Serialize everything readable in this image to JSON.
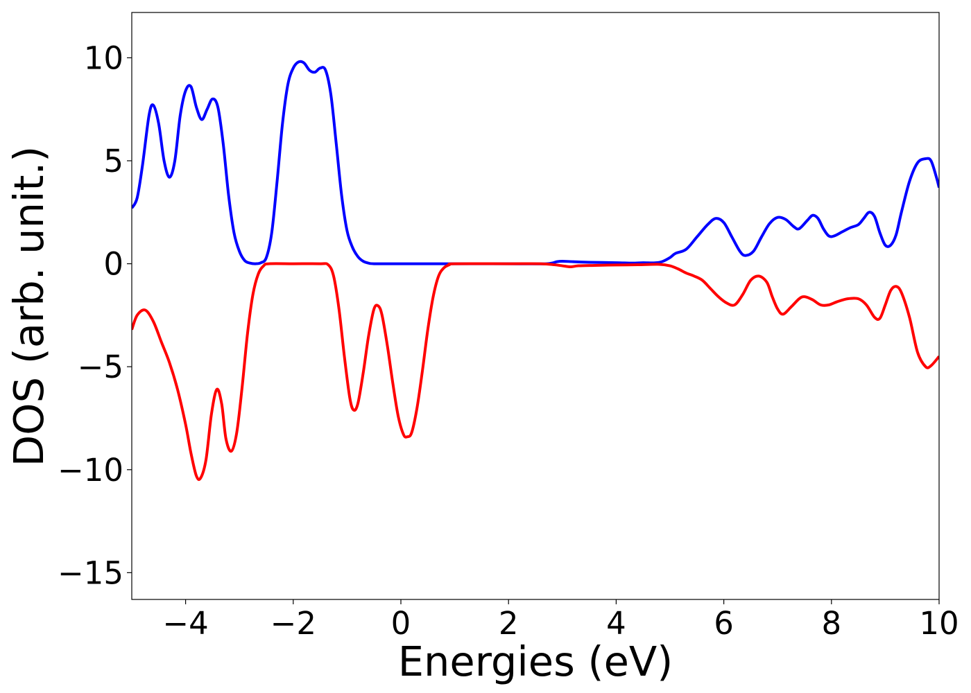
{
  "chart_data": {
    "type": "line",
    "title": "",
    "xlabel": "Energies (eV)",
    "ylabel": "DOS (arb. unit.)",
    "xlim": [
      -5,
      10
    ],
    "ylim": [
      -16.3,
      12.2
    ],
    "grid": false,
    "legend": "none",
    "x_ticks": [
      {
        "value": -4,
        "label": "−4"
      },
      {
        "value": -2,
        "label": "−2"
      },
      {
        "value": 0,
        "label": "0"
      },
      {
        "value": 2,
        "label": "2"
      },
      {
        "value": 4,
        "label": "4"
      },
      {
        "value": 6,
        "label": "6"
      },
      {
        "value": 8,
        "label": "8"
      },
      {
        "value": 10,
        "label": "10"
      }
    ],
    "y_ticks": [
      {
        "value": 10,
        "label": "10"
      },
      {
        "value": 5,
        "label": "5"
      },
      {
        "value": 0,
        "label": "0"
      },
      {
        "value": -5,
        "label": "−5"
      },
      {
        "value": -10,
        "label": "−10"
      },
      {
        "value": -15,
        "label": "−15"
      }
    ],
    "series": [
      {
        "color": "#0000ff",
        "points": [
          [
            -5.0,
            2.7
          ],
          [
            -4.9,
            3.2
          ],
          [
            -4.8,
            4.8
          ],
          [
            -4.68,
            7.2
          ],
          [
            -4.6,
            7.7
          ],
          [
            -4.5,
            6.8
          ],
          [
            -4.4,
            5.0
          ],
          [
            -4.3,
            4.2
          ],
          [
            -4.2,
            5.0
          ],
          [
            -4.1,
            7.2
          ],
          [
            -4.0,
            8.4
          ],
          [
            -3.9,
            8.6
          ],
          [
            -3.8,
            7.6
          ],
          [
            -3.7,
            7.0
          ],
          [
            -3.6,
            7.5
          ],
          [
            -3.5,
            8.0
          ],
          [
            -3.4,
            7.6
          ],
          [
            -3.3,
            5.8
          ],
          [
            -3.2,
            3.3
          ],
          [
            -3.1,
            1.5
          ],
          [
            -3.0,
            0.6
          ],
          [
            -2.9,
            0.15
          ],
          [
            -2.8,
            0.03
          ],
          [
            -2.7,
            0.0
          ],
          [
            -2.6,
            0.05
          ],
          [
            -2.5,
            0.3
          ],
          [
            -2.4,
            1.5
          ],
          [
            -2.3,
            4.0
          ],
          [
            -2.2,
            6.8
          ],
          [
            -2.1,
            8.7
          ],
          [
            -2.0,
            9.5
          ],
          [
            -1.9,
            9.8
          ],
          [
            -1.8,
            9.75
          ],
          [
            -1.7,
            9.4
          ],
          [
            -1.6,
            9.3
          ],
          [
            -1.5,
            9.5
          ],
          [
            -1.4,
            9.4
          ],
          [
            -1.3,
            8.2
          ],
          [
            -1.2,
            5.8
          ],
          [
            -1.1,
            3.3
          ],
          [
            -1.0,
            1.6
          ],
          [
            -0.9,
            0.8
          ],
          [
            -0.8,
            0.35
          ],
          [
            -0.7,
            0.12
          ],
          [
            -0.6,
            0.03
          ],
          [
            -0.5,
            0.0
          ],
          [
            0.0,
            0.0
          ],
          [
            1.0,
            0.0
          ],
          [
            2.0,
            0.0
          ],
          [
            2.7,
            0.0
          ],
          [
            2.9,
            0.1
          ],
          [
            3.0,
            0.12
          ],
          [
            3.2,
            0.1
          ],
          [
            3.5,
            0.07
          ],
          [
            4.0,
            0.05
          ],
          [
            4.3,
            0.03
          ],
          [
            4.5,
            0.05
          ],
          [
            4.7,
            0.04
          ],
          [
            4.85,
            0.1
          ],
          [
            5.0,
            0.3
          ],
          [
            5.1,
            0.5
          ],
          [
            5.3,
            0.7
          ],
          [
            5.5,
            1.3
          ],
          [
            5.7,
            1.9
          ],
          [
            5.85,
            2.2
          ],
          [
            6.0,
            2.0
          ],
          [
            6.15,
            1.3
          ],
          [
            6.3,
            0.6
          ],
          [
            6.4,
            0.4
          ],
          [
            6.55,
            0.6
          ],
          [
            6.7,
            1.3
          ],
          [
            6.85,
            1.95
          ],
          [
            7.0,
            2.25
          ],
          [
            7.15,
            2.15
          ],
          [
            7.3,
            1.8
          ],
          [
            7.4,
            1.7
          ],
          [
            7.55,
            2.1
          ],
          [
            7.65,
            2.35
          ],
          [
            7.75,
            2.2
          ],
          [
            7.85,
            1.7
          ],
          [
            7.95,
            1.35
          ],
          [
            8.05,
            1.35
          ],
          [
            8.2,
            1.55
          ],
          [
            8.35,
            1.75
          ],
          [
            8.5,
            1.9
          ],
          [
            8.6,
            2.2
          ],
          [
            8.7,
            2.5
          ],
          [
            8.8,
            2.3
          ],
          [
            8.9,
            1.5
          ],
          [
            9.0,
            0.9
          ],
          [
            9.1,
            0.9
          ],
          [
            9.2,
            1.4
          ],
          [
            9.3,
            2.5
          ],
          [
            9.45,
            4.0
          ],
          [
            9.6,
            4.9
          ],
          [
            9.75,
            5.1
          ],
          [
            9.85,
            5.0
          ],
          [
            9.95,
            4.2
          ],
          [
            10.0,
            3.7
          ]
        ]
      },
      {
        "color": "#ff0000",
        "points": [
          [
            -5.0,
            -3.2
          ],
          [
            -4.9,
            -2.5
          ],
          [
            -4.75,
            -2.25
          ],
          [
            -4.6,
            -2.8
          ],
          [
            -4.45,
            -3.8
          ],
          [
            -4.3,
            -4.8
          ],
          [
            -4.15,
            -6.1
          ],
          [
            -4.0,
            -7.8
          ],
          [
            -3.9,
            -9.2
          ],
          [
            -3.8,
            -10.3
          ],
          [
            -3.72,
            -10.4
          ],
          [
            -3.62,
            -9.5
          ],
          [
            -3.52,
            -7.3
          ],
          [
            -3.42,
            -6.1
          ],
          [
            -3.33,
            -6.8
          ],
          [
            -3.25,
            -8.5
          ],
          [
            -3.15,
            -9.1
          ],
          [
            -3.05,
            -8.2
          ],
          [
            -2.95,
            -6.0
          ],
          [
            -2.85,
            -3.4
          ],
          [
            -2.75,
            -1.5
          ],
          [
            -2.65,
            -0.5
          ],
          [
            -2.55,
            -0.1
          ],
          [
            -2.45,
            0.0
          ],
          [
            -2.0,
            0.0
          ],
          [
            -1.5,
            0.0
          ],
          [
            -1.35,
            -0.05
          ],
          [
            -1.25,
            -0.6
          ],
          [
            -1.15,
            -2.2
          ],
          [
            -1.05,
            -4.5
          ],
          [
            -0.95,
            -6.5
          ],
          [
            -0.88,
            -7.1
          ],
          [
            -0.8,
            -6.8
          ],
          [
            -0.7,
            -5.3
          ],
          [
            -0.6,
            -3.5
          ],
          [
            -0.5,
            -2.2
          ],
          [
            -0.42,
            -2.05
          ],
          [
            -0.35,
            -2.5
          ],
          [
            -0.25,
            -4.0
          ],
          [
            -0.15,
            -5.8
          ],
          [
            -0.05,
            -7.4
          ],
          [
            0.05,
            -8.3
          ],
          [
            0.12,
            -8.4
          ],
          [
            0.2,
            -8.2
          ],
          [
            0.3,
            -7.0
          ],
          [
            0.4,
            -5.2
          ],
          [
            0.5,
            -3.2
          ],
          [
            0.6,
            -1.6
          ],
          [
            0.7,
            -0.6
          ],
          [
            0.8,
            -0.2
          ],
          [
            0.9,
            -0.05
          ],
          [
            1.0,
            0.0
          ],
          [
            2.0,
            0.0
          ],
          [
            2.6,
            0.0
          ],
          [
            2.85,
            -0.05
          ],
          [
            3.0,
            -0.1
          ],
          [
            3.15,
            -0.15
          ],
          [
            3.3,
            -0.1
          ],
          [
            3.6,
            -0.08
          ],
          [
            4.0,
            -0.06
          ],
          [
            4.4,
            -0.05
          ],
          [
            4.8,
            -0.03
          ],
          [
            5.0,
            -0.1
          ],
          [
            5.15,
            -0.25
          ],
          [
            5.3,
            -0.45
          ],
          [
            5.45,
            -0.6
          ],
          [
            5.6,
            -0.8
          ],
          [
            5.75,
            -1.2
          ],
          [
            5.9,
            -1.6
          ],
          [
            6.05,
            -1.9
          ],
          [
            6.2,
            -2.0
          ],
          [
            6.35,
            -1.5
          ],
          [
            6.5,
            -0.8
          ],
          [
            6.65,
            -0.6
          ],
          [
            6.8,
            -0.9
          ],
          [
            6.9,
            -1.6
          ],
          [
            7.0,
            -2.2
          ],
          [
            7.1,
            -2.45
          ],
          [
            7.25,
            -2.1
          ],
          [
            7.4,
            -1.7
          ],
          [
            7.5,
            -1.6
          ],
          [
            7.65,
            -1.75
          ],
          [
            7.8,
            -2.0
          ],
          [
            7.95,
            -2.0
          ],
          [
            8.1,
            -1.85
          ],
          [
            8.3,
            -1.7
          ],
          [
            8.5,
            -1.7
          ],
          [
            8.65,
            -2.0
          ],
          [
            8.8,
            -2.6
          ],
          [
            8.9,
            -2.65
          ],
          [
            9.0,
            -2.0
          ],
          [
            9.1,
            -1.3
          ],
          [
            9.2,
            -1.1
          ],
          [
            9.3,
            -1.4
          ],
          [
            9.45,
            -2.6
          ],
          [
            9.6,
            -4.3
          ],
          [
            9.75,
            -5.0
          ],
          [
            9.85,
            -4.95
          ],
          [
            10.0,
            -4.5
          ]
        ]
      }
    ]
  }
}
